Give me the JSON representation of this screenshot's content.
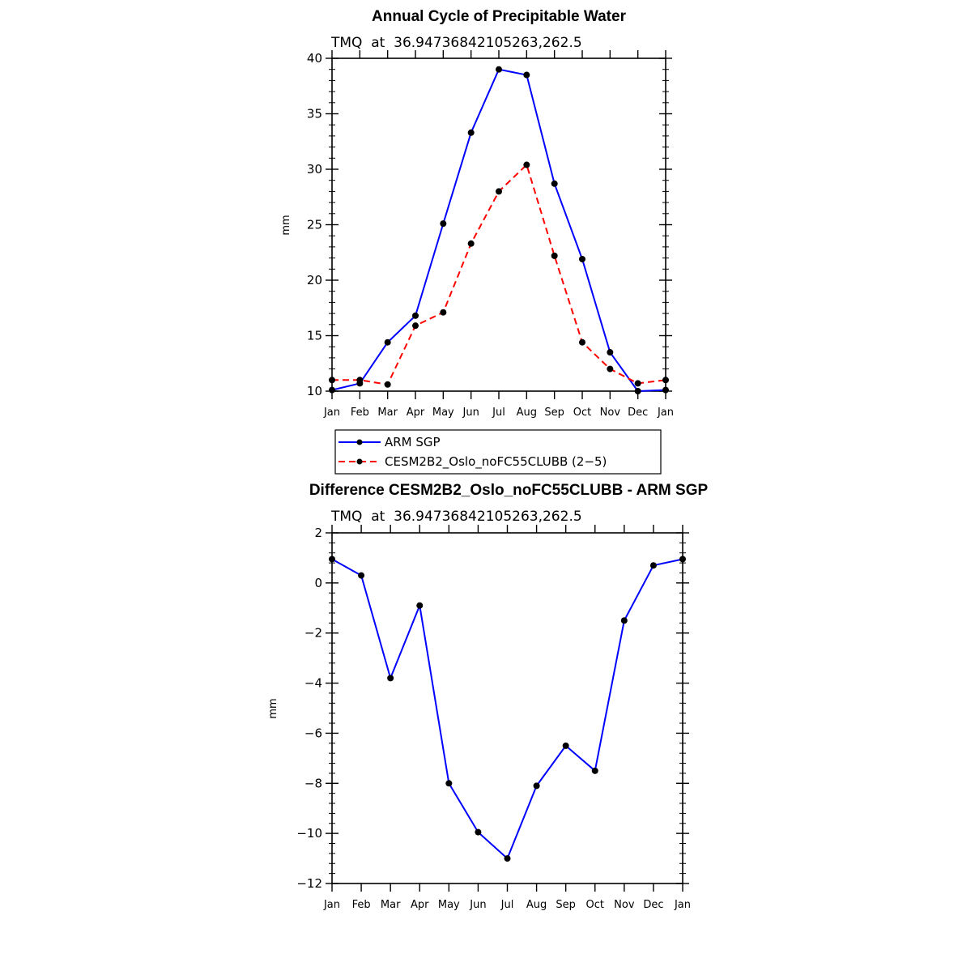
{
  "chart_data": [
    {
      "type": "line",
      "title": "Annual Cycle of Precipitable Water",
      "subtitle": "TMQ  at  36.94736842105263,262.5",
      "ylabel": "mm",
      "ylim": [
        10,
        40
      ],
      "yticks": [
        10,
        15,
        20,
        25,
        30,
        35,
        40
      ],
      "categories": [
        "Jan",
        "Feb",
        "Mar",
        "Apr",
        "May",
        "Jun",
        "Jul",
        "Aug",
        "Sep",
        "Oct",
        "Nov",
        "Dec",
        "Jan"
      ],
      "series": [
        {
          "name": "ARM SGP",
          "color": "#0000ff",
          "dash": "solid",
          "values": [
            10.1,
            10.7,
            14.4,
            16.8,
            25.1,
            33.3,
            39.0,
            38.5,
            28.7,
            21.9,
            13.5,
            10.0,
            10.1
          ]
        },
        {
          "name": "CESM2B2_Oslo_noFC55CLUBB (2−5)",
          "color": "#ff0000",
          "dash": "dashed",
          "values": [
            11.0,
            11.0,
            10.6,
            15.9,
            17.1,
            23.3,
            28.0,
            30.4,
            22.2,
            14.4,
            12.0,
            10.7,
            11.0
          ]
        }
      ],
      "legend": {
        "placement": "below",
        "entries": [
          "ARM SGP",
          "CESM2B2_Oslo_noFC55CLUBB (2−5)"
        ]
      }
    },
    {
      "type": "line",
      "title": "Difference CESM2B2_Oslo_noFC55CLUBB - ARM SGP",
      "subtitle": "TMQ  at  36.94736842105263,262.5",
      "ylabel": "mm",
      "ylim": [
        -12,
        2
      ],
      "yticks": [
        -12,
        -10,
        -8,
        -6,
        -4,
        -2,
        0,
        2
      ],
      "ytick_labels": [
        "−12",
        "−10",
        "−8",
        "−6",
        "−4",
        "−2",
        "0",
        "2"
      ],
      "categories": [
        "Jan",
        "Feb",
        "Mar",
        "Apr",
        "May",
        "Jun",
        "Jul",
        "Aug",
        "Sep",
        "Oct",
        "Nov",
        "Dec",
        "Jan"
      ],
      "series": [
        {
          "color": "#0000ff",
          "dash": "solid",
          "values": [
            0.95,
            0.3,
            -3.8,
            -0.9,
            -8.0,
            -9.95,
            -11.0,
            -8.1,
            -6.5,
            -7.5,
            -1.5,
            0.7,
            0.95
          ]
        }
      ]
    }
  ]
}
